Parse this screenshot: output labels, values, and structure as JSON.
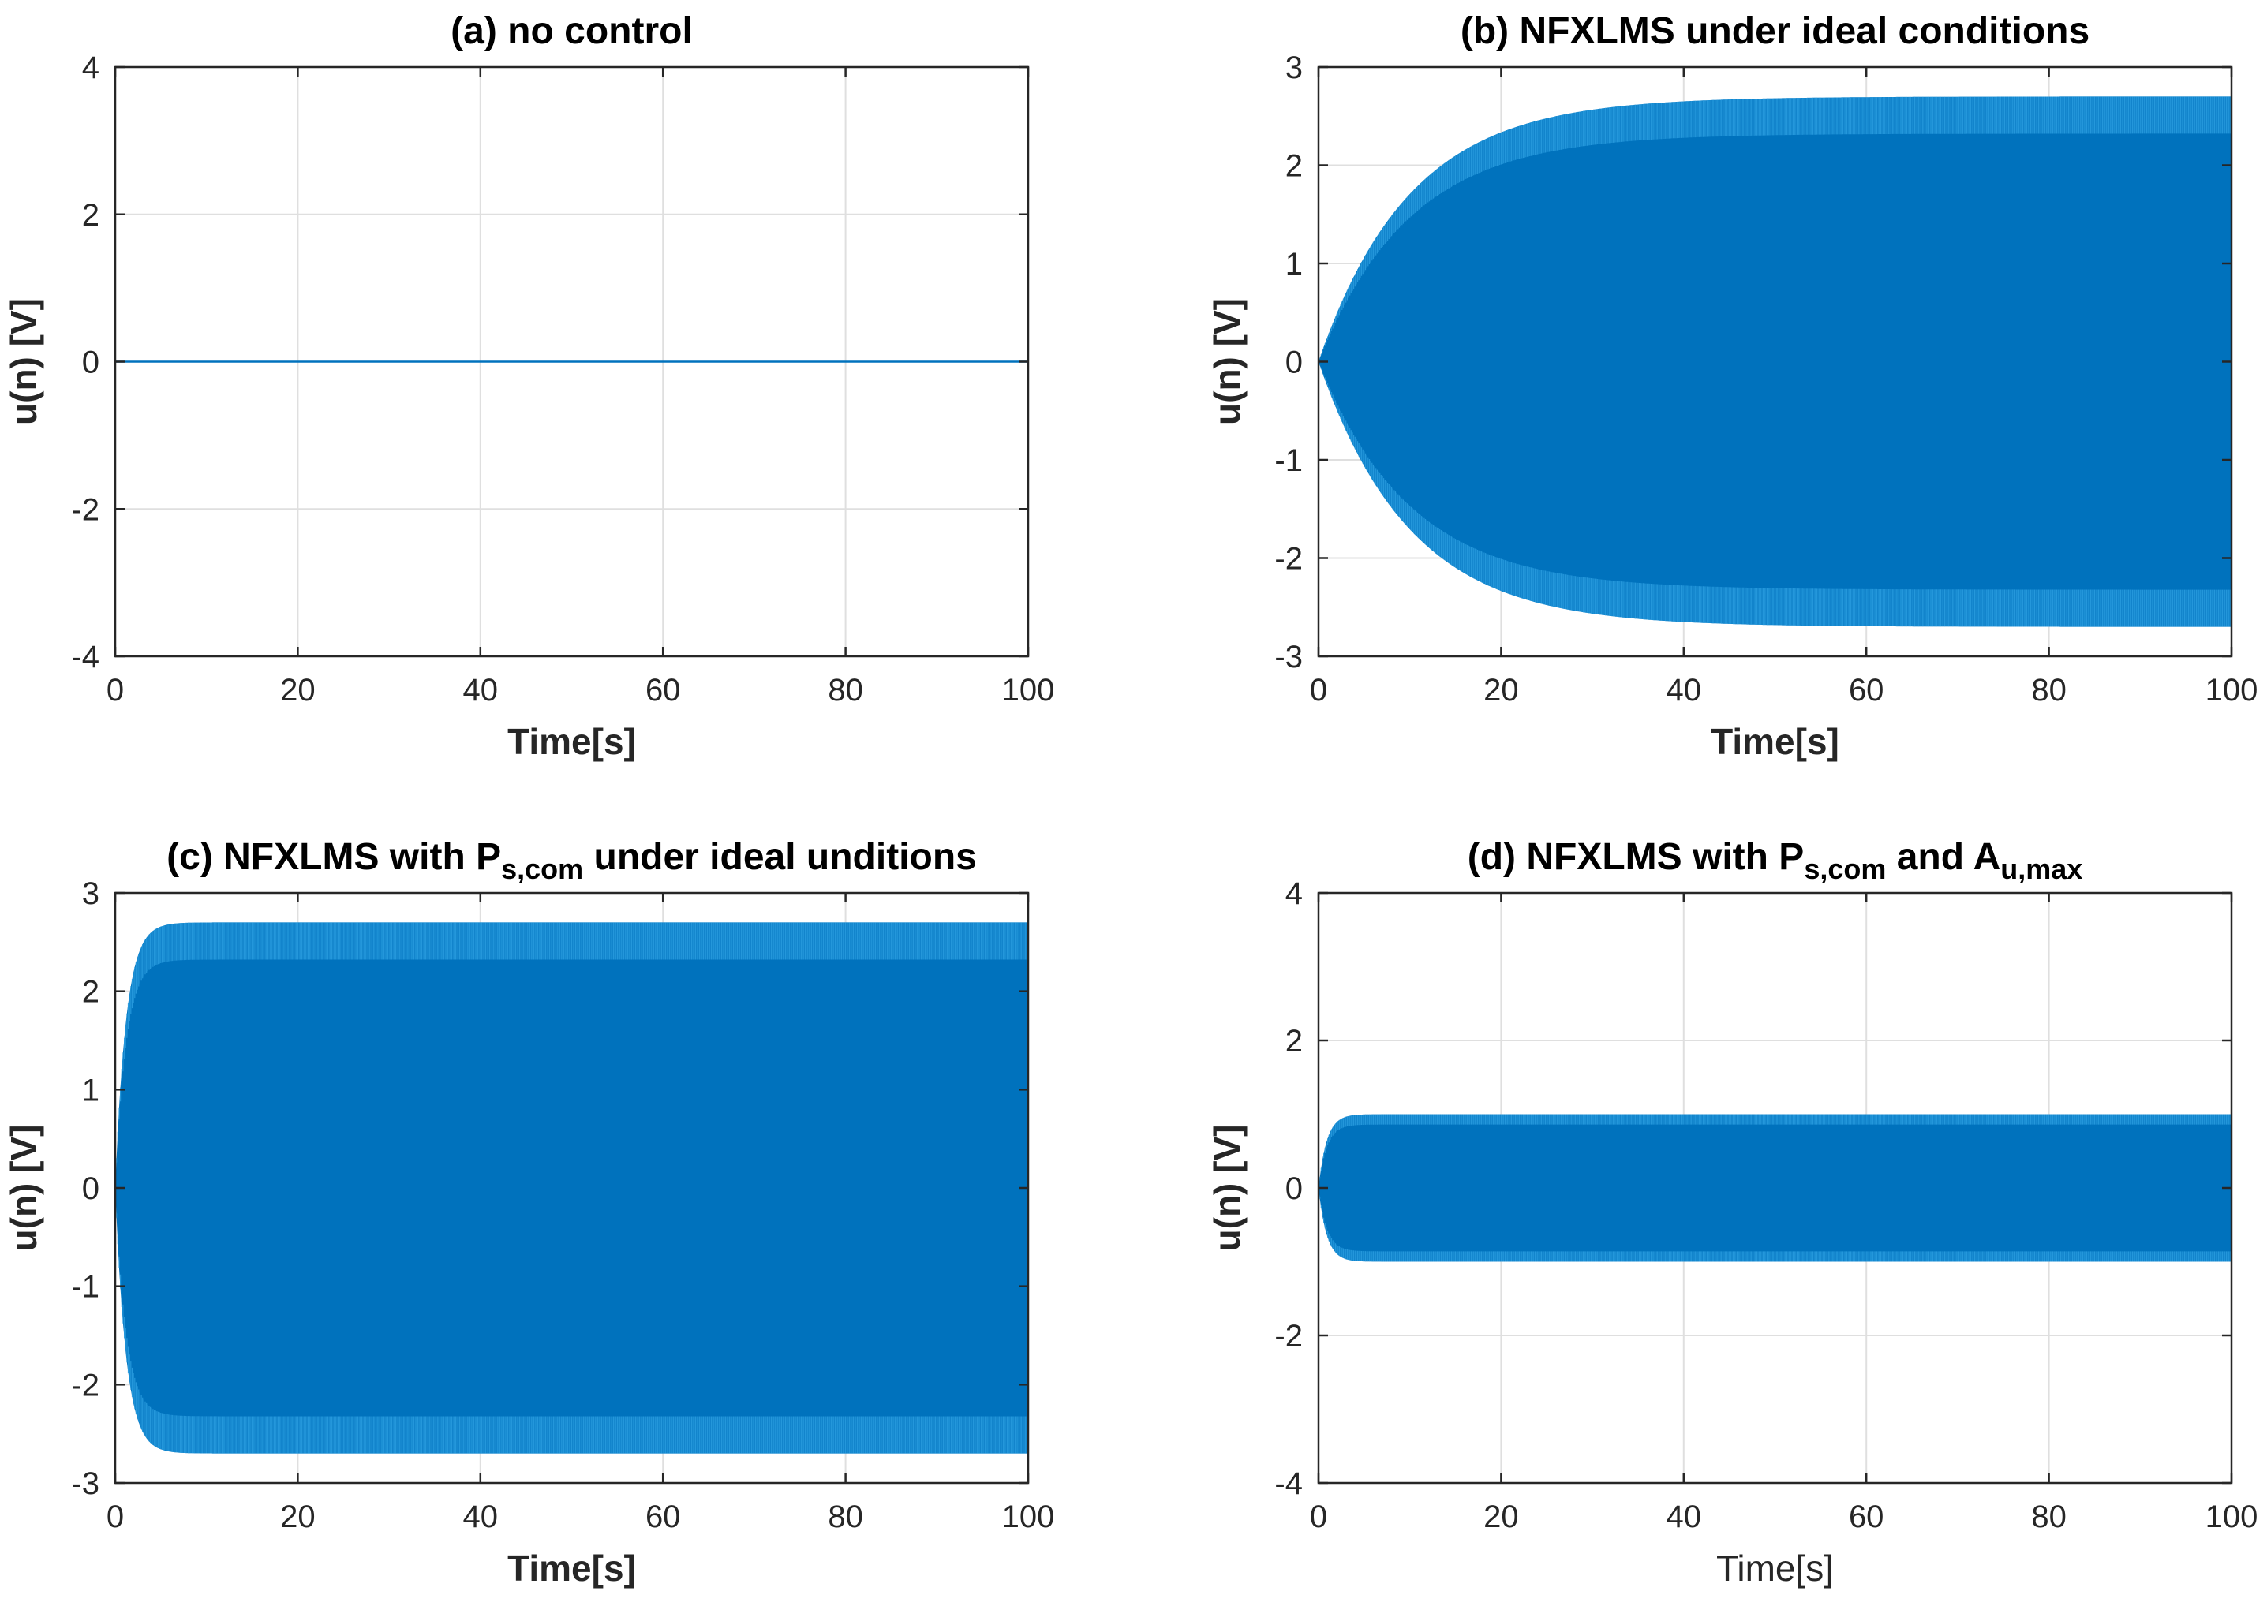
{
  "colors": {
    "series": "#0072bd",
    "series_light": "#2a9ee0"
  },
  "chart_data": [
    {
      "id": "a",
      "type": "line",
      "title": "(a) no control",
      "title_runs": [
        {
          "t": "(a) no control",
          "sub": false
        }
      ],
      "xlabel": "Time[s]",
      "xlabel_bold": true,
      "ylabel": "u(n) [V]",
      "xlim": [
        0,
        100
      ],
      "ylim": [
        -4,
        4
      ],
      "xticks": [
        0,
        20,
        40,
        60,
        80,
        100
      ],
      "yticks": [
        -4,
        -2,
        0,
        2,
        4
      ],
      "grid": true,
      "series": [
        {
          "x_range": [
            0,
            100
          ],
          "envelope": {
            "kind": "flat",
            "amplitude": 0
          }
        }
      ]
    },
    {
      "id": "b",
      "type": "line",
      "title": "(b) NFXLMS under ideal conditions",
      "title_runs": [
        {
          "t": "(b) NFXLMS under ideal conditions",
          "sub": false
        }
      ],
      "xlabel": "Time[s]",
      "xlabel_bold": true,
      "ylabel": "u(n) [V]",
      "xlim": [
        0,
        100
      ],
      "ylim": [
        -3,
        3
      ],
      "xticks": [
        0,
        20,
        40,
        60,
        80,
        100
      ],
      "yticks": [
        -3,
        -2,
        -1,
        0,
        1,
        2,
        3
      ],
      "grid": true,
      "series": [
        {
          "x_range": [
            0,
            100
          ],
          "envelope": {
            "kind": "saturating",
            "amplitude": 2.7,
            "time_constant": 10
          }
        }
      ]
    },
    {
      "id": "c",
      "type": "line",
      "title": "(c) NFXLMS with Ps,com under ideal unditions",
      "title_runs": [
        {
          "t": "(c) NFXLMS with P",
          "sub": false
        },
        {
          "t": "s,com",
          "sub": true
        },
        {
          "t": " under ideal unditions",
          "sub": false
        }
      ],
      "xlabel": "Time[s]",
      "xlabel_bold": true,
      "ylabel": "u(n) [V]",
      "xlim": [
        0,
        100
      ],
      "ylim": [
        -3,
        3
      ],
      "xticks": [
        0,
        20,
        40,
        60,
        80,
        100
      ],
      "yticks": [
        -3,
        -2,
        -1,
        0,
        1,
        2,
        3
      ],
      "grid": true,
      "series": [
        {
          "x_range": [
            0,
            100
          ],
          "envelope": {
            "kind": "saturating",
            "amplitude": 2.7,
            "time_constant": 1.2
          }
        }
      ]
    },
    {
      "id": "d",
      "type": "line",
      "title": "(d) NFXLMS with Ps,com and Au,max",
      "title_runs": [
        {
          "t": "(d) NFXLMS with P",
          "sub": false
        },
        {
          "t": "s,com",
          "sub": true
        },
        {
          "t": " and A",
          "sub": false
        },
        {
          "t": "u,max",
          "sub": true
        }
      ],
      "xlabel": "Time[s]",
      "xlabel_bold": false,
      "ylabel": "u(n) [V]",
      "xlim": [
        0,
        100
      ],
      "ylim": [
        -4,
        4
      ],
      "xticks": [
        0,
        20,
        40,
        60,
        80,
        100
      ],
      "yticks": [
        -4,
        -2,
        0,
        2,
        4
      ],
      "grid": true,
      "series": [
        {
          "x_range": [
            0,
            100
          ],
          "envelope": {
            "kind": "saturating",
            "amplitude": 1.0,
            "time_constant": 0.9
          }
        }
      ]
    }
  ]
}
